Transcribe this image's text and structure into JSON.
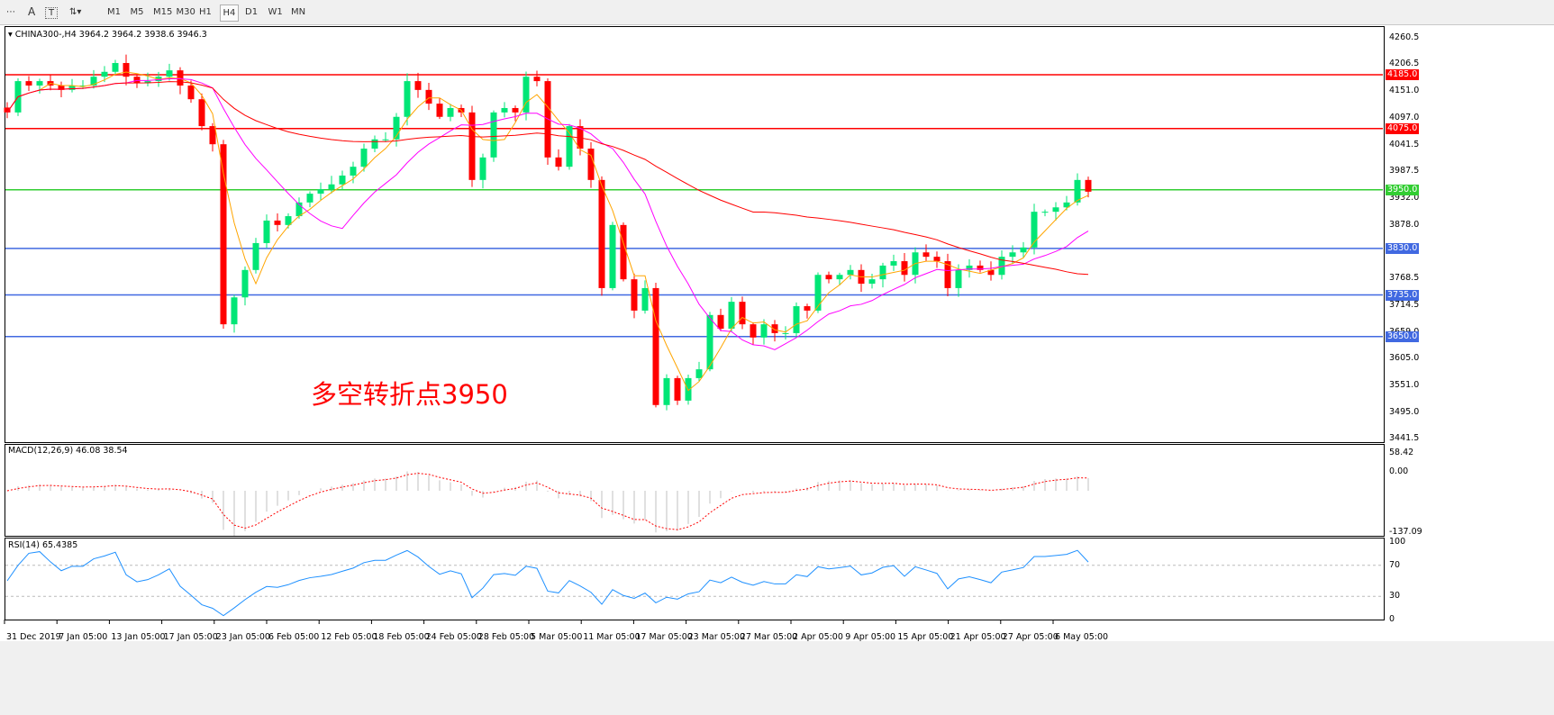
{
  "toolbar": {
    "timeframes": [
      "M1",
      "M5",
      "M15",
      "M30",
      "H1",
      "H4",
      "D1",
      "W1",
      "MN"
    ],
    "selected": "H4",
    "icons": [
      "period-separator-icon",
      "text-icon",
      "text-label-icon",
      "arrows-icon"
    ]
  },
  "chart": {
    "header": "CHINA300-,H4  3964.2 3964.2 3938.6 3946.3",
    "annotation": "多空转折点3950",
    "price_axis": [
      "4260.5",
      "4206.5",
      "4151.0",
      "4097.0",
      "4041.5",
      "3987.5",
      "3932.0",
      "3878.0",
      "3824.0",
      "3768.5",
      "3714.5",
      "3659.0",
      "3605.0",
      "3551.0",
      "3495.0",
      "3441.5"
    ],
    "levels": [
      {
        "price": 4185.0,
        "label": "4185.0",
        "color": "#ff0000"
      },
      {
        "price": 4075.0,
        "label": "4075.0",
        "color": "#ff0000"
      },
      {
        "price": 3950.0,
        "label": "3950.0",
        "color": "#32cd32"
      },
      {
        "price": 3830.0,
        "label": "3830.0",
        "color": "#4169e1"
      },
      {
        "price": 3735.0,
        "label": "3735.0",
        "color": "#4169e1"
      },
      {
        "price": 3650.0,
        "label": "3650.0",
        "color": "#4169e1"
      }
    ],
    "colors": {
      "bull": "#00e676",
      "bear": "#ff0000",
      "ma_fast": "#ffa500",
      "ma_mid": "#ff00ff",
      "ma_slow": "#ff0000"
    }
  },
  "macd": {
    "label": "MACD(12,26,9) 46.08 38.54",
    "axis": [
      "58.42",
      "0.00",
      "-137.09"
    ]
  },
  "rsi": {
    "label": "RSI(14) 65.4385",
    "axis": [
      "100",
      "70",
      "30",
      "0"
    ]
  },
  "time_axis": [
    "31 Dec 2019",
    "7 Jan 05:00",
    "13 Jan 05:00",
    "17 Jan 05:00",
    "23 Jan 05:00",
    "6 Feb 05:00",
    "12 Feb 05:00",
    "18 Feb 05:00",
    "24 Feb 05:00",
    "28 Feb 05:00",
    "5 Mar 05:00",
    "11 Mar 05:00",
    "17 Mar 05:00",
    "23 Mar 05:00",
    "27 Mar 05:00",
    "2 Apr 05:00",
    "9 Apr 05:00",
    "15 Apr 05:00",
    "21 Apr 05:00",
    "27 Apr 05:00",
    "6 May 05:00"
  ],
  "chart_data": {
    "type": "candlestick",
    "symbol": "CHINA300-",
    "timeframe": "H4",
    "ylim": [
      3441.5,
      4260.5
    ],
    "closes": [
      4108,
      4172,
      4163,
      4172,
      4163,
      4154,
      4163,
      4163,
      4181,
      4191,
      4209,
      4181,
      4168,
      4172,
      4181,
      4194,
      4163,
      4135,
      4080,
      4043,
      3675,
      3730,
      3786,
      3841,
      3887,
      3878,
      3896,
      3924,
      3942,
      3951,
      3961,
      3979,
      3997,
      4034,
      4053,
      4053,
      4099,
      4172,
      4154,
      4126,
      4099,
      4117,
      4108,
      3970,
      4016,
      4108,
      4117,
      4108,
      4181,
      4172,
      4016,
      3997,
      4080,
      4034,
      3970,
      3749,
      3878,
      3767,
      3703,
      3749,
      3510,
      3565,
      3519,
      3565,
      3583,
      3694,
      3666,
      3721,
      3675,
      3648,
      3675,
      3657,
      3657,
      3712,
      3703,
      3776,
      3767,
      3776,
      3786,
      3758,
      3767,
      3795,
      3804,
      3776,
      3822,
      3813,
      3804,
      3749,
      3786,
      3795,
      3786,
      3776,
      3813,
      3822,
      3832,
      3905,
      3905,
      3914,
      3924,
      3970,
      3946
    ]
  }
}
